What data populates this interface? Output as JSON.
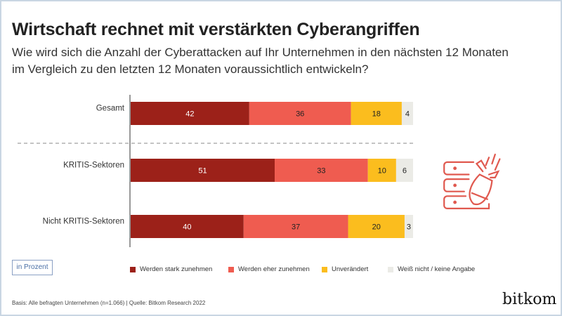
{
  "title": "Wirtschaft rechnet mit verstärkten Cyberangriffen",
  "subtitle": "Wie wird sich die Anzahl der Cyberattacken auf Ihr Unternehmen in den nächsten 12 Monaten im Vergleich zu den letzten 12 Monaten voraussichtlich entwickeln?",
  "unit_label": "in Prozent",
  "basis": "Basis: Alle befragten Unternehmen (n=1.066) | Quelle: Bitkom Research 2022",
  "logo": "bitkom",
  "icon": "server-bomb-icon",
  "chart_data": {
    "type": "bar",
    "orientation": "horizontal",
    "stacked": true,
    "categories": [
      "Gesamt",
      "KRITIS-Sektoren",
      "Nicht KRITIS-Sektoren"
    ],
    "series": [
      {
        "name": "Werden stark zunehmen",
        "color": "#9c2119",
        "values": [
          42,
          51,
          40
        ]
      },
      {
        "name": "Werden eher zunehmen",
        "color": "#ef5c50",
        "values": [
          36,
          33,
          37
        ]
      },
      {
        "name": "Unverändert",
        "color": "#fbbd1e",
        "values": [
          18,
          10,
          20
        ]
      },
      {
        "name": "Weiß nicht / keine Angabe",
        "color": "#ebebe6",
        "values": [
          4,
          6,
          3
        ]
      }
    ],
    "xlim": [
      0,
      100
    ],
    "legend": "bottom",
    "grid": false
  }
}
